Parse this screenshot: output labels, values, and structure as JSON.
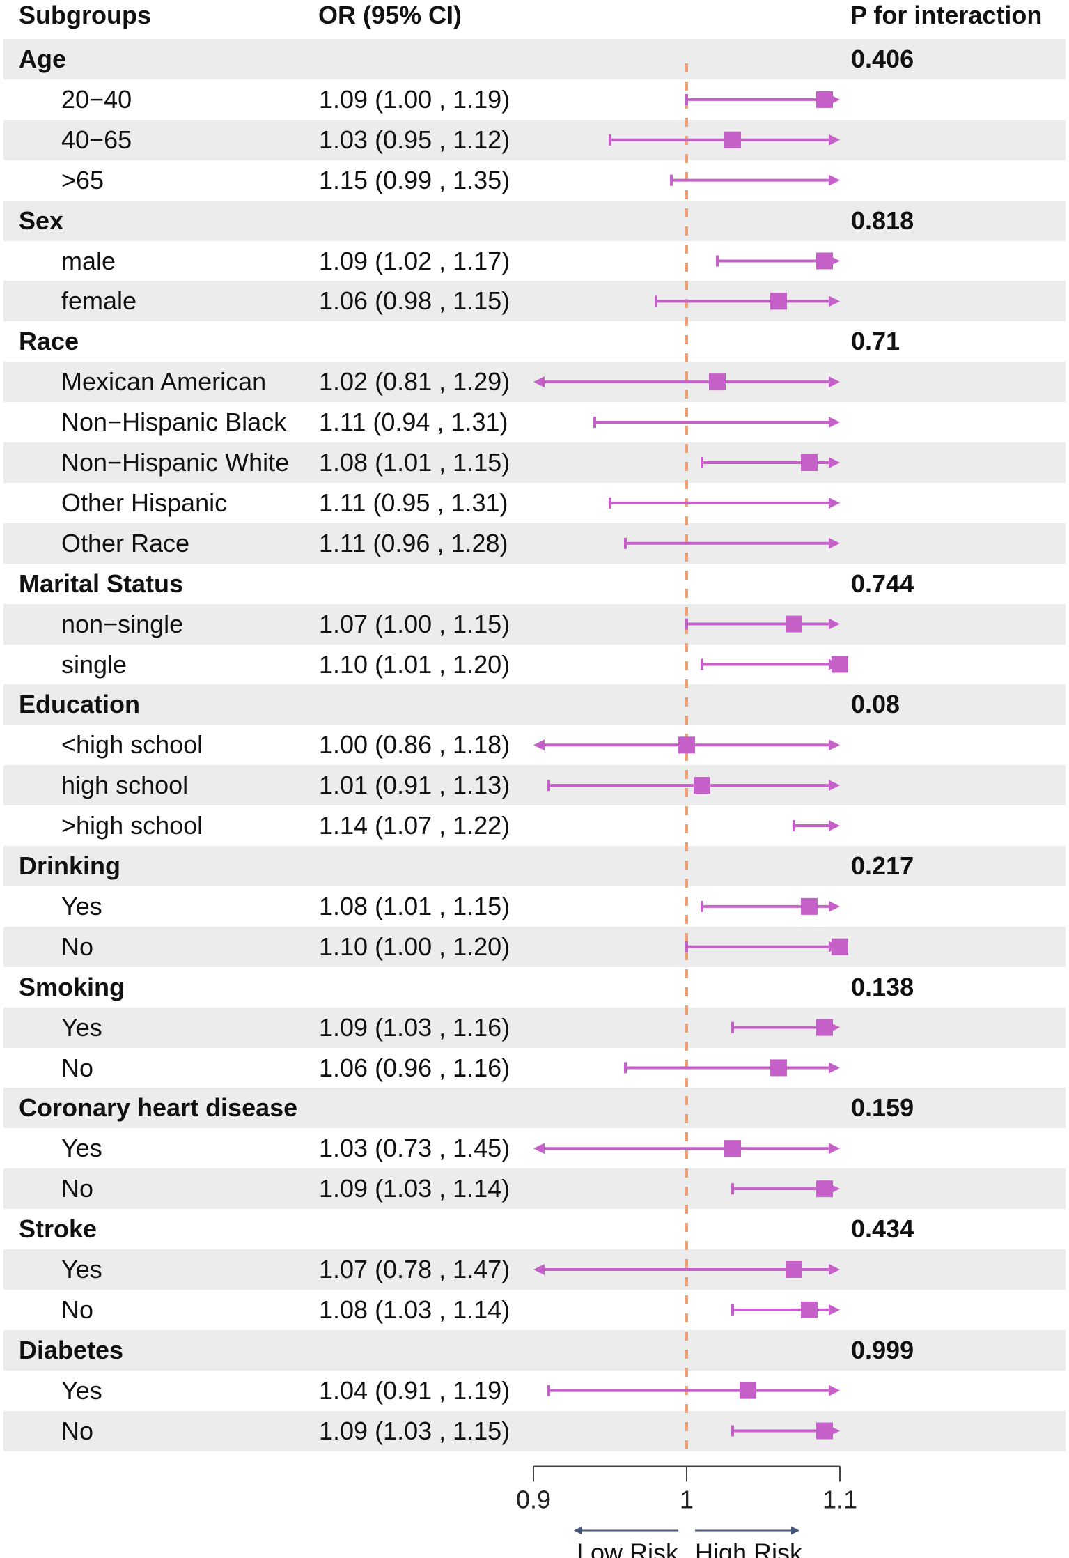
{
  "chart_data": {
    "type": "forest",
    "headers": {
      "subgroups": "Subgroups",
      "or": "OR (95% CI)",
      "p": "P for interaction"
    },
    "xlim": [
      0.9,
      1.1
    ],
    "ticks": [
      0.9,
      1,
      1.1
    ],
    "tick_labels": [
      "0.9",
      "1",
      "1.1"
    ],
    "reference_line": 1,
    "direction_labels": {
      "low": "Low Risk",
      "high": "High Risk"
    },
    "colors": {
      "marker": "#c460c8",
      "reference": "#f0a070",
      "shade": "#ececec",
      "axis": "#444444"
    },
    "rows": [
      {
        "kind": "group",
        "label": "Age",
        "p": "0.406"
      },
      {
        "kind": "sub",
        "label": "20−40",
        "or_text": "1.09 (1.00 , 1.19)",
        "or": 1.09,
        "lo": 1.0,
        "hi": 1.19
      },
      {
        "kind": "sub",
        "label": "40−65",
        "or_text": "1.03 (0.95 , 1.12)",
        "or": 1.03,
        "lo": 0.95,
        "hi": 1.12
      },
      {
        "kind": "sub",
        "label": ">65",
        "or_text": "1.15 (0.99 , 1.35)",
        "or": 1.15,
        "lo": 0.99,
        "hi": 1.35
      },
      {
        "kind": "group",
        "label": "Sex",
        "p": "0.818"
      },
      {
        "kind": "sub",
        "label": "male",
        "or_text": "1.09 (1.02 , 1.17)",
        "or": 1.09,
        "lo": 1.02,
        "hi": 1.17
      },
      {
        "kind": "sub",
        "label": "female",
        "or_text": "1.06 (0.98 , 1.15)",
        "or": 1.06,
        "lo": 0.98,
        "hi": 1.15
      },
      {
        "kind": "group",
        "label": "Race",
        "p": "0.71"
      },
      {
        "kind": "sub",
        "label": "Mexican American",
        "or_text": "1.02 (0.81 , 1.29)",
        "or": 1.02,
        "lo": 0.81,
        "hi": 1.29
      },
      {
        "kind": "sub",
        "label": "Non−Hispanic Black",
        "or_text": "1.11 (0.94 , 1.31)",
        "or": 1.11,
        "lo": 0.94,
        "hi": 1.31
      },
      {
        "kind": "sub",
        "label": "Non−Hispanic White",
        "or_text": "1.08 (1.01 , 1.15)",
        "or": 1.08,
        "lo": 1.01,
        "hi": 1.15
      },
      {
        "kind": "sub",
        "label": "Other Hispanic",
        "or_text": "1.11 (0.95 , 1.31)",
        "or": 1.11,
        "lo": 0.95,
        "hi": 1.31
      },
      {
        "kind": "sub",
        "label": "Other Race",
        "or_text": "1.11 (0.96 , 1.28)",
        "or": 1.11,
        "lo": 0.96,
        "hi": 1.28
      },
      {
        "kind": "group",
        "label": "Marital Status",
        "p": "0.744"
      },
      {
        "kind": "sub",
        "label": "non−single",
        "or_text": "1.07 (1.00 , 1.15)",
        "or": 1.07,
        "lo": 1.0,
        "hi": 1.15
      },
      {
        "kind": "sub",
        "label": "single",
        "or_text": "1.10 (1.01 , 1.20)",
        "or": 1.1,
        "lo": 1.01,
        "hi": 1.2
      },
      {
        "kind": "group",
        "label": "Education",
        "p": "0.08"
      },
      {
        "kind": "sub",
        "label": "<high school",
        "or_text": "1.00 (0.86 , 1.18)",
        "or": 1.0,
        "lo": 0.86,
        "hi": 1.18
      },
      {
        "kind": "sub",
        "label": "high school",
        "or_text": "1.01 (0.91 , 1.13)",
        "or": 1.01,
        "lo": 0.91,
        "hi": 1.13
      },
      {
        "kind": "sub",
        "label": ">high school",
        "or_text": "1.14 (1.07 , 1.22)",
        "or": 1.14,
        "lo": 1.07,
        "hi": 1.22
      },
      {
        "kind": "group",
        "label": "Drinking",
        "p": "0.217"
      },
      {
        "kind": "sub",
        "label": "Yes",
        "or_text": "1.08 (1.01 , 1.15)",
        "or": 1.08,
        "lo": 1.01,
        "hi": 1.15
      },
      {
        "kind": "sub",
        "label": "No",
        "or_text": "1.10 (1.00 , 1.20)",
        "or": 1.1,
        "lo": 1.0,
        "hi": 1.2
      },
      {
        "kind": "group",
        "label": "Smoking",
        "p": "0.138"
      },
      {
        "kind": "sub",
        "label": "Yes",
        "or_text": "1.09 (1.03 , 1.16)",
        "or": 1.09,
        "lo": 1.03,
        "hi": 1.16
      },
      {
        "kind": "sub",
        "label": "No",
        "or_text": "1.06 (0.96 , 1.16)",
        "or": 1.06,
        "lo": 0.96,
        "hi": 1.16
      },
      {
        "kind": "group",
        "label": "Coronary heart disease",
        "p": "0.159"
      },
      {
        "kind": "sub",
        "label": "Yes",
        "or_text": "1.03 (0.73 , 1.45)",
        "or": 1.03,
        "lo": 0.73,
        "hi": 1.45
      },
      {
        "kind": "sub",
        "label": "No",
        "or_text": "1.09 (1.03 , 1.14)",
        "or": 1.09,
        "lo": 1.03,
        "hi": 1.14
      },
      {
        "kind": "group",
        "label": "Stroke",
        "p": "0.434"
      },
      {
        "kind": "sub",
        "label": "Yes",
        "or_text": "1.07 (0.78 , 1.47)",
        "or": 1.07,
        "lo": 0.78,
        "hi": 1.47
      },
      {
        "kind": "sub",
        "label": "No",
        "or_text": "1.08 (1.03 , 1.14)",
        "or": 1.08,
        "lo": 1.03,
        "hi": 1.14
      },
      {
        "kind": "group",
        "label": "Diabetes",
        "p": "0.999"
      },
      {
        "kind": "sub",
        "label": "Yes",
        "or_text": "1.04 (0.91 , 1.19)",
        "or": 1.04,
        "lo": 0.91,
        "hi": 1.19
      },
      {
        "kind": "sub",
        "label": "No",
        "or_text": "1.09 (1.03 , 1.15)",
        "or": 1.09,
        "lo": 1.03,
        "hi": 1.15
      }
    ]
  }
}
